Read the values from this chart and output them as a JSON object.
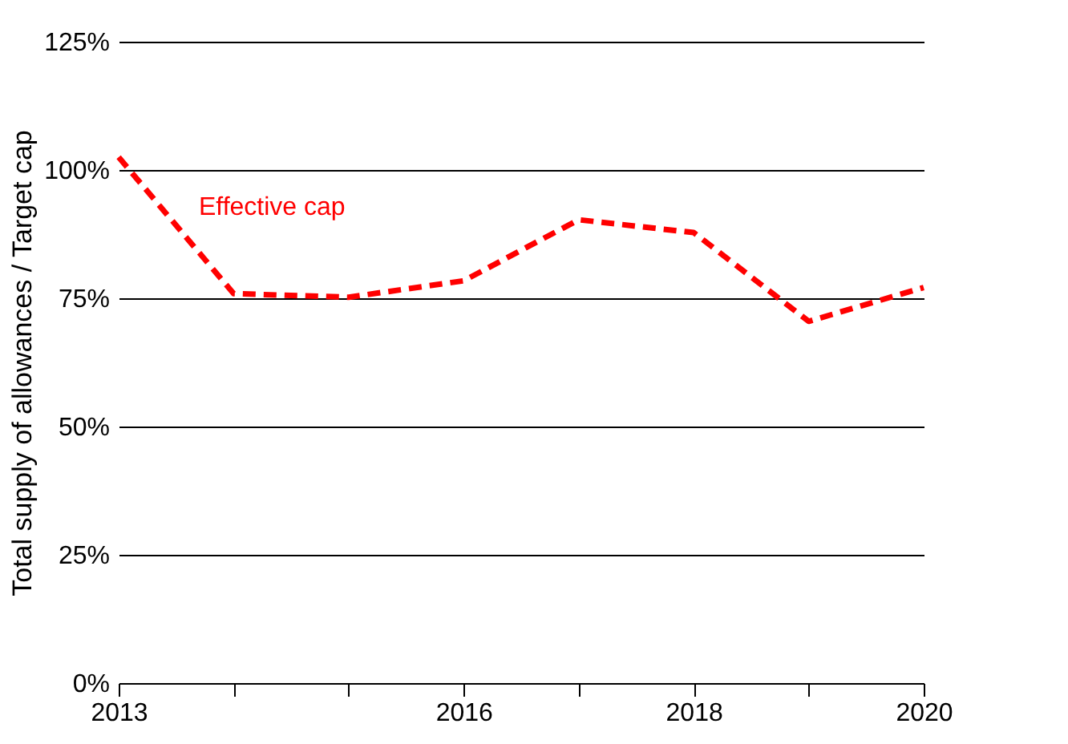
{
  "chart_data": {
    "type": "line",
    "ylabel": "Total supply of allowances / Target cap",
    "x": [
      2013,
      2014,
      2015,
      2016,
      2017,
      2018,
      2019,
      2020
    ],
    "series": [
      {
        "name": "Effective cap",
        "color": "#ff0000",
        "values": [
          102.5,
          75.9,
          75.2,
          78.4,
          90.3,
          87.8,
          70.5,
          77.1
        ]
      }
    ],
    "xlim": [
      2013,
      2020
    ],
    "xticks": [
      2013,
      {
        "value": 2014,
        "label": null
      },
      {
        "value": 2015,
        "label": null
      },
      2016,
      {
        "value": 2017,
        "label": null
      },
      2018,
      {
        "value": 2019,
        "label": null
      },
      2020
    ],
    "ylim": [
      0,
      125
    ],
    "yticks": [
      {
        "value": 0,
        "label": "0%"
      },
      {
        "value": 25,
        "label": "25%"
      },
      {
        "value": 50,
        "label": "50%"
      },
      {
        "value": 75,
        "label": "75%"
      },
      {
        "value": 100,
        "label": "100%"
      },
      {
        "value": 125,
        "label": "125%"
      }
    ],
    "grid": "y",
    "line_style": "dashed",
    "marker": "none"
  }
}
